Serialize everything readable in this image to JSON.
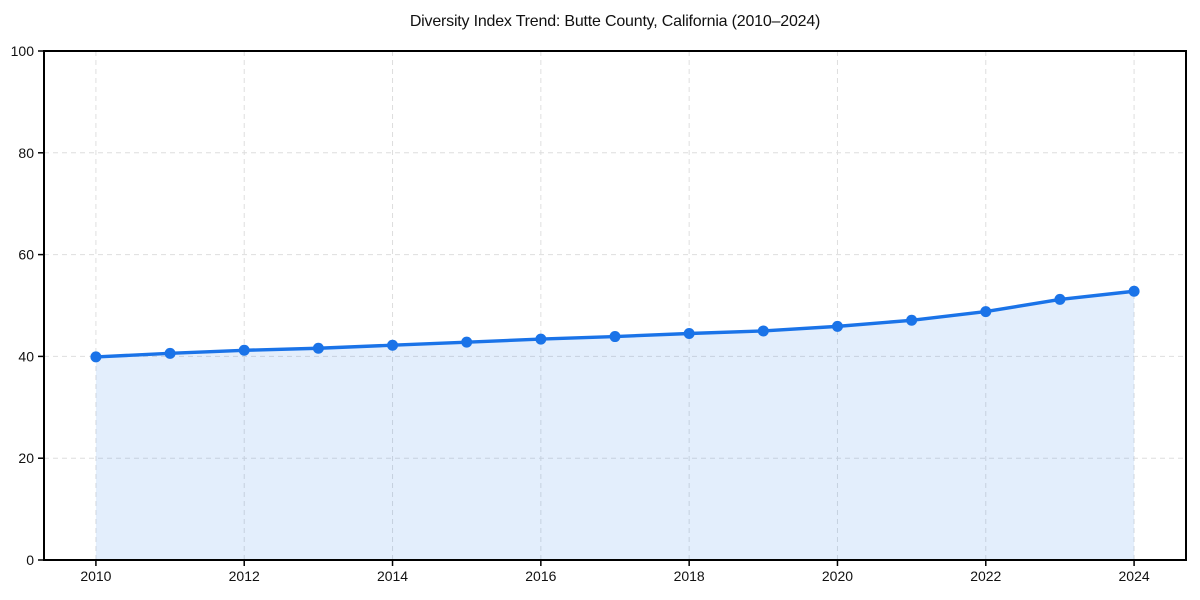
{
  "page": {
    "background": "#ffffff"
  },
  "chart_data": {
    "type": "line",
    "title": "Diversity Index Trend: Butte County, California (2010–2024)",
    "xlabel": "",
    "ylabel": "",
    "x": [
      2010,
      2011,
      2012,
      2013,
      2014,
      2015,
      2016,
      2017,
      2018,
      2019,
      2020,
      2021,
      2022,
      2023,
      2024
    ],
    "series": [
      {
        "name": "Diversity Index",
        "values": [
          39.9,
          40.6,
          41.2,
          41.6,
          42.2,
          42.8,
          43.4,
          43.9,
          44.5,
          45.0,
          45.9,
          47.1,
          48.8,
          51.2,
          52.8
        ]
      }
    ],
    "xticks": [
      2010,
      2012,
      2014,
      2016,
      2018,
      2020,
      2022,
      2024
    ],
    "yticks": [
      0,
      20,
      40,
      60,
      80,
      100
    ],
    "xlim": [
      2009.3,
      2024.7
    ],
    "ylim": [
      0,
      100
    ],
    "grid": true,
    "grid_style": "dashed",
    "legend": "none",
    "area_filled_to_zero": true,
    "colors": {
      "line": "#1a73e8",
      "marker": "#1a73e8",
      "area_fill": "rgba(26,115,232,0.12)",
      "gridline": "#dedede",
      "spine": "#000000",
      "tick_label": "#111111",
      "title": "#111111",
      "background": "#ffffff"
    },
    "marker_radius": 5.5,
    "line_width": 3.4
  }
}
